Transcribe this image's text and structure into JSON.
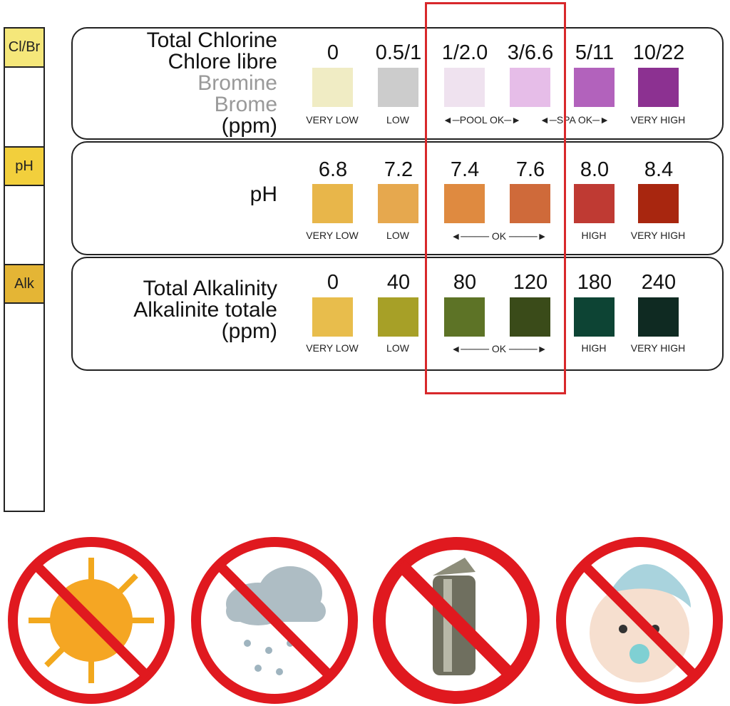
{
  "strip": {
    "pads": [
      {
        "label": "Cl/Br",
        "color": "#f5e77a"
      },
      {
        "label": "pH",
        "color": "#f2cf3c"
      },
      {
        "label": "Alk",
        "color": "#e4b535"
      }
    ]
  },
  "rows": [
    {
      "title": [
        "Total Chlorine",
        "Chlore libre"
      ],
      "title_grey": [
        "Bromine",
        "Brome"
      ],
      "unit": "(ppm)",
      "values": [
        "0",
        "0.5/1",
        "1/2.0",
        "3/6.6",
        "5/11",
        "10/22"
      ],
      "colors": [
        "#f0ecc4",
        "#cccccc",
        "#efe2ef",
        "#e6bde8",
        "#b262bc",
        "#8c3191"
      ],
      "labels": [
        "VERY LOW",
        "LOW",
        "",
        "",
        "",
        "VERY HIGH"
      ],
      "ranges": [
        "POOL OK",
        "SPA OK"
      ]
    },
    {
      "title": [
        "pH"
      ],
      "title_grey": [],
      "unit": "",
      "values": [
        "6.8",
        "7.2",
        "7.4",
        "7.6",
        "8.0",
        "8.4"
      ],
      "colors": [
        "#e8b64a",
        "#e6a84e",
        "#df8a40",
        "#cf6a3a",
        "#bf3a33",
        "#a8260f"
      ],
      "labels": [
        "VERY LOW",
        "LOW",
        "",
        "",
        "HIGH",
        "VERY HIGH"
      ],
      "ranges": [
        "OK"
      ]
    },
    {
      "title": [
        "Total Alkalinity",
        "Alkalinite totale"
      ],
      "title_grey": [],
      "unit": "(ppm)",
      "values": [
        "0",
        "40",
        "80",
        "120",
        "180",
        "240"
      ],
      "colors": [
        "#e8bd4c",
        "#a7a027",
        "#5d7326",
        "#3a4b19",
        "#0d4434",
        "#0f2a22"
      ],
      "labels": [
        "VERY LOW",
        "LOW",
        "",
        "",
        "HIGH",
        "VERY HIGH"
      ],
      "ranges": [
        "OK"
      ]
    }
  ],
  "warnings": [
    "no-sun-icon",
    "no-rain-icon",
    "no-open-container-icon",
    "no-children-icon"
  ],
  "highlight_color": "#d8282b"
}
